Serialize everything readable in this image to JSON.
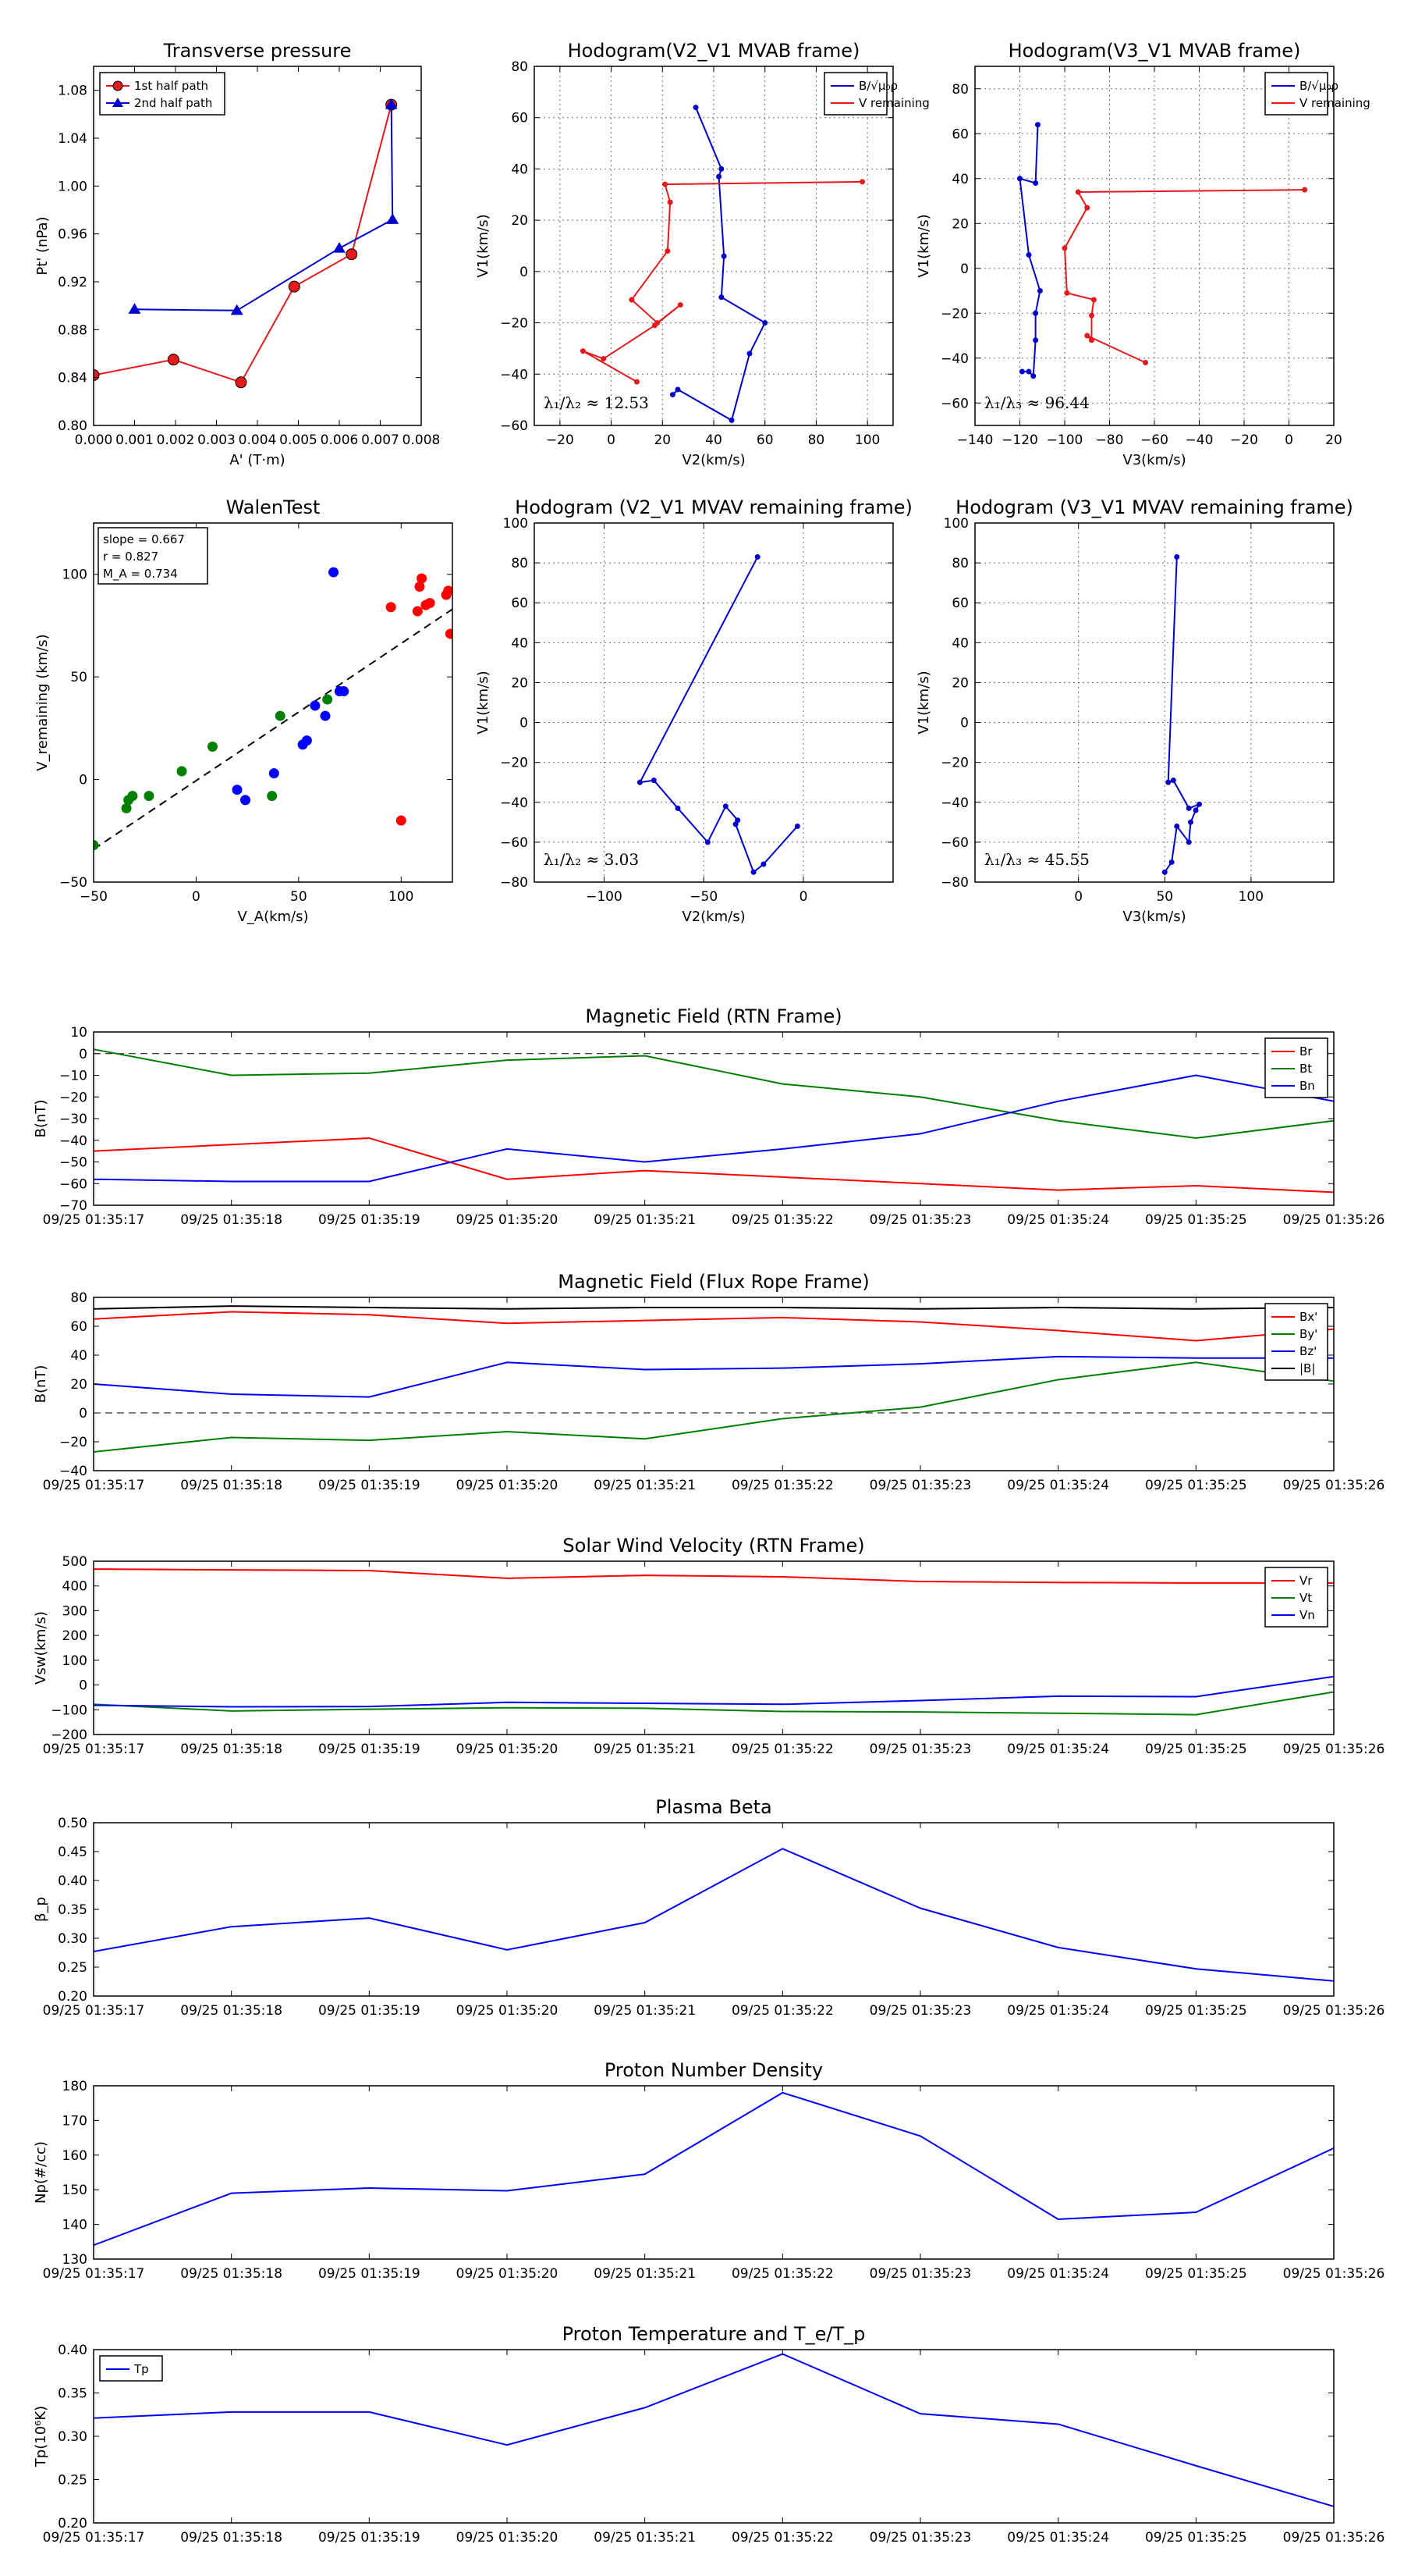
{
  "chart_data": [
    {
      "id": "p1",
      "type": "scatter",
      "title": "Transverse pressure",
      "xlabel": "A' (T·m)",
      "ylabel": "Pt' (nPa)",
      "xlim": [
        0.0,
        0.008
      ],
      "ylim": [
        0.8,
        1.1
      ],
      "xticks": [
        0.0,
        0.001,
        0.002,
        0.003,
        0.004,
        0.005,
        0.006,
        0.007,
        0.008
      ],
      "xtick_labels": [
        "0.000",
        "0.001",
        "0.002",
        "0.003",
        "0.004",
        "0.005",
        "0.006",
        "0.007",
        "0.008"
      ],
      "yticks": [
        0.8,
        0.84,
        0.88,
        0.92,
        0.96,
        1.0,
        1.04,
        1.08
      ],
      "ytick_labels": [
        "0.80",
        "0.84",
        "0.88",
        "0.92",
        "0.96",
        "1.00",
        "1.04",
        "1.08"
      ],
      "grid": false,
      "legend": "top-left",
      "series": [
        {
          "name": "1st half path",
          "color": "#e41a1c",
          "marker": "circle",
          "x": [
            0.0,
            0.00195,
            0.0036,
            0.0049,
            0.0063,
            0.00727
          ],
          "y": [
            0.842,
            0.855,
            0.836,
            0.916,
            0.943,
            1.068
          ]
        },
        {
          "name": "2nd half path",
          "color": "#0000cc",
          "marker": "triangle",
          "x": [
            0.00727,
            0.0073,
            0.006,
            0.0035,
            0.001
          ],
          "y": [
            1.068,
            0.972,
            0.948,
            0.896,
            0.897
          ]
        }
      ]
    },
    {
      "id": "p2",
      "type": "line",
      "title": "Hodogram(V2_V1 MVAB frame)",
      "xlabel": "V2(km/s)",
      "ylabel": "V1(km/s)",
      "xlim": [
        -30,
        110
      ],
      "ylim": [
        -60,
        80
      ],
      "xticks": [
        -20,
        0,
        20,
        40,
        60,
        80,
        100
      ],
      "xtick_labels": [
        "−20",
        "0",
        "20",
        "40",
        "60",
        "80",
        "100"
      ],
      "yticks": [
        -60,
        -40,
        -20,
        0,
        20,
        40,
        60,
        80
      ],
      "ytick_labels": [
        "−60",
        "−40",
        "−20",
        "0",
        "20",
        "40",
        "60",
        "80"
      ],
      "grid": true,
      "legend": "top-right",
      "annotation": "λ₁/λ₂ ≈ 12.53",
      "series": [
        {
          "name": "B/√μ₀ρ",
          "color": "#0000cc",
          "x": [
            33,
            43,
            42,
            44,
            43,
            60,
            54,
            47,
            26,
            24
          ],
          "y": [
            64,
            40,
            37,
            6,
            -10,
            -20,
            -32,
            -58,
            -46,
            -48
          ]
        },
        {
          "name": "V remaining",
          "color": "#e41a1c",
          "x": [
            98,
            21,
            23,
            22,
            8,
            18,
            27,
            17,
            -3,
            -11,
            10
          ],
          "y": [
            35,
            34,
            27,
            8,
            -11,
            -20,
            -13,
            -21,
            -34,
            -31,
            -43
          ]
        }
      ]
    },
    {
      "id": "p3",
      "type": "line",
      "title": "Hodogram(V3_V1 MVAB frame)",
      "xlabel": "V3(km/s)",
      "ylabel": "V1(km/s)",
      "xlim": [
        -140,
        20
      ],
      "ylim": [
        -70,
        90
      ],
      "xticks": [
        -140,
        -120,
        -100,
        -80,
        -60,
        -40,
        -20,
        0,
        20
      ],
      "xtick_labels": [
        "−140",
        "−120",
        "−100",
        "−80",
        "−60",
        "−40",
        "−20",
        "0",
        "20"
      ],
      "yticks": [
        -60,
        -40,
        -20,
        0,
        20,
        40,
        60,
        80
      ],
      "ytick_labels": [
        "−60",
        "−40",
        "−20",
        "0",
        "20",
        "40",
        "60",
        "80"
      ],
      "grid": true,
      "legend": "top-right",
      "annotation": "λ₁/λ₃ ≈ 96.44",
      "series": [
        {
          "name": "B/√μ₀ρ",
          "color": "#0000cc",
          "x": [
            -112,
            -113,
            -120,
            -116,
            -111,
            -113,
            -113,
            -114,
            -116,
            -119
          ],
          "y": [
            64,
            38,
            40,
            6,
            -10,
            -20,
            -32,
            -48,
            -46,
            -46
          ]
        },
        {
          "name": "V remaining",
          "color": "#e41a1c",
          "x": [
            7,
            -94,
            -90,
            -100,
            -99,
            -87,
            -88,
            -88,
            -90,
            -64
          ],
          "y": [
            35,
            34,
            27,
            9,
            -11,
            -14,
            -21,
            -32,
            -30,
            -42
          ]
        }
      ]
    },
    {
      "id": "p4",
      "type": "scatter",
      "title": "WalenTest",
      "xlabel": "V_A(km/s)",
      "ylabel": "V_remaining (km/s)",
      "xlim": [
        -50,
        125
      ],
      "ylim": [
        -50,
        125
      ],
      "xticks": [
        -50,
        0,
        50,
        100
      ],
      "xtick_labels": [
        "−50",
        "0",
        "50",
        "100"
      ],
      "yticks": [
        -50,
        0,
        50,
        100
      ],
      "ytick_labels": [
        "−50",
        "0",
        "50",
        "100"
      ],
      "grid": false,
      "annotation_lines": [
        "slope = 0.667",
        "r = 0.827",
        "M_A = 0.734"
      ],
      "fit_line": {
        "x": [
          -50,
          125
        ],
        "y": [
          -34,
          83
        ]
      },
      "series": [
        {
          "name": "blue",
          "color": "#0000ff",
          "x": [
            67,
            20,
            24,
            38,
            52,
            54,
            63,
            58,
            70,
            72
          ],
          "y": [
            101,
            -5,
            -10,
            3,
            17,
            19,
            31,
            36,
            43,
            43
          ]
        },
        {
          "name": "red",
          "color": "#ff0000",
          "x": [
            95,
            108,
            109,
            110,
            112,
            114,
            122,
            123,
            124,
            100
          ],
          "y": [
            84,
            82,
            94,
            98,
            85,
            86,
            90,
            92,
            71,
            -20
          ]
        },
        {
          "name": "green",
          "color": "#008000",
          "x": [
            -50,
            -34,
            -33,
            -31,
            -23,
            -7,
            8,
            37,
            41,
            64
          ],
          "y": [
            -32,
            -14,
            -10,
            -8,
            -8,
            4,
            16,
            -8,
            31,
            39
          ]
        }
      ]
    },
    {
      "id": "p5",
      "type": "line",
      "title": "Hodogram (V2_V1 MVAV remaining frame)",
      "xlabel": "V2(km/s)",
      "ylabel": "V1(km/s)",
      "xlim": [
        -135,
        45
      ],
      "ylim": [
        -80,
        100
      ],
      "xticks": [
        -100,
        -50,
        0
      ],
      "xtick_labels": [
        "−100",
        "−50",
        "0"
      ],
      "yticks": [
        -80,
        -60,
        -40,
        -20,
        0,
        20,
        40,
        60,
        80,
        100
      ],
      "ytick_labels": [
        "−80",
        "−60",
        "−40",
        "−20",
        "0",
        "20",
        "40",
        "60",
        "80",
        "100"
      ],
      "grid": true,
      "annotation": "λ₁/λ₂ ≈ 3.03",
      "series": [
        {
          "name": "V remaining",
          "color": "#0000cc",
          "x": [
            -23,
            -82,
            -75,
            -63,
            -48,
            -39,
            -33,
            -34,
            -25,
            -20,
            -3
          ],
          "y": [
            83,
            -30,
            -29,
            -43,
            -60,
            -42,
            -49,
            -51,
            -75,
            -71,
            -52
          ]
        }
      ]
    },
    {
      "id": "p6",
      "type": "line",
      "title": "Hodogram (V3_V1 MVAV remaining frame)",
      "xlabel": "V3(km/s)",
      "ylabel": "V1(km/s)",
      "xlim": [
        -60,
        148
      ],
      "ylim": [
        -80,
        100
      ],
      "xticks": [
        0,
        50,
        100
      ],
      "xtick_labels": [
        "0",
        "50",
        "100"
      ],
      "yticks": [
        -80,
        -60,
        -40,
        -20,
        0,
        20,
        40,
        60,
        80,
        100
      ],
      "ytick_labels": [
        "−80",
        "−60",
        "−40",
        "−20",
        "0",
        "20",
        "40",
        "60",
        "80",
        "100"
      ],
      "grid": true,
      "annotation": "λ₁/λ₃ ≈ 45.55",
      "series": [
        {
          "name": "V remaining",
          "color": "#0000cc",
          "x": [
            57,
            52,
            55,
            64,
            70,
            68,
            65,
            64,
            57,
            54,
            50
          ],
          "y": [
            83,
            -30,
            -29,
            -43,
            -41,
            -44,
            -50,
            -60,
            -52,
            -70,
            -75
          ]
        }
      ]
    },
    {
      "id": "p7",
      "type": "line",
      "title": "Magnetic Field (RTN Frame)",
      "ylabel": "B(nT)",
      "ylim": [
        -70,
        10
      ],
      "yticks": [
        -70,
        -60,
        -50,
        -40,
        -30,
        -20,
        -10,
        0,
        10
      ],
      "ytick_labels": [
        "−70",
        "−60",
        "−50",
        "−40",
        "−30",
        "−20",
        "−10",
        "0",
        "10"
      ],
      "categories": [
        "09/25 01:35:17",
        "09/25 01:35:18",
        "09/25 01:35:19",
        "09/25 01:35:20",
        "09/25 01:35:21",
        "09/25 01:35:22",
        "09/25 01:35:23",
        "09/25 01:35:24",
        "09/25 01:35:25",
        "09/25 01:35:26"
      ],
      "zero_line": true,
      "legend": "top-right",
      "series": [
        {
          "name": "Br",
          "color": "#ff0000",
          "values": [
            -45,
            -42,
            -39,
            -58,
            -54,
            -57,
            -60,
            -63,
            -61,
            -64
          ]
        },
        {
          "name": "Bt",
          "color": "#008000",
          "values": [
            2,
            -10,
            -9,
            -3,
            -1,
            -14,
            -20,
            -31,
            -39,
            -31
          ]
        },
        {
          "name": "Bn",
          "color": "#0000ff",
          "values": [
            -58,
            -59,
            -59,
            -44,
            -50,
            -44,
            -37,
            -22,
            -10,
            -22
          ]
        }
      ]
    },
    {
      "id": "p8",
      "type": "line",
      "title": "Magnetic Field (Flux Rope Frame)",
      "ylabel": "B(nT)",
      "ylim": [
        -40,
        80
      ],
      "yticks": [
        -40,
        -20,
        0,
        20,
        40,
        60,
        80
      ],
      "ytick_labels": [
        "−40",
        "−20",
        "0",
        "20",
        "40",
        "60",
        "80"
      ],
      "categories": [
        "09/25 01:35:17",
        "09/25 01:35:18",
        "09/25 01:35:19",
        "09/25 01:35:20",
        "09/25 01:35:21",
        "09/25 01:35:22",
        "09/25 01:35:23",
        "09/25 01:35:24",
        "09/25 01:35:25",
        "09/25 01:35:26"
      ],
      "zero_line": true,
      "legend": "top-right",
      "series": [
        {
          "name": "Bx'",
          "color": "#ff0000",
          "values": [
            65,
            70,
            68,
            62,
            64,
            66,
            63,
            57,
            50,
            58
          ]
        },
        {
          "name": "By'",
          "color": "#008000",
          "values": [
            -27,
            -17,
            -19,
            -13,
            -18,
            -4,
            4,
            23,
            35,
            22
          ]
        },
        {
          "name": "Bz'",
          "color": "#0000ff",
          "values": [
            20,
            13,
            11,
            35,
            30,
            31,
            34,
            39,
            38,
            38
          ]
        },
        {
          "name": "|B|",
          "color": "#000000",
          "values": [
            72,
            74,
            73,
            72,
            73,
            73,
            72,
            73,
            72,
            73
          ]
        }
      ]
    },
    {
      "id": "p9",
      "type": "line",
      "title": "Solar Wind Velocity (RTN Frame)",
      "ylabel": "Vsw(km/s)",
      "ylim": [
        -200,
        500
      ],
      "yticks": [
        -200,
        -100,
        0,
        100,
        200,
        300,
        400,
        500
      ],
      "ytick_labels": [
        "−200",
        "−100",
        "0",
        "100",
        "200",
        "300",
        "400",
        "500"
      ],
      "categories": [
        "09/25 01:35:17",
        "09/25 01:35:18",
        "09/25 01:35:19",
        "09/25 01:35:20",
        "09/25 01:35:21",
        "09/25 01:35:22",
        "09/25 01:35:23",
        "09/25 01:35:24",
        "09/25 01:35:25",
        "09/25 01:35:26"
      ],
      "legend": "top-right",
      "series": [
        {
          "name": "Vr",
          "color": "#ff0000",
          "values": [
            468,
            465,
            462,
            431,
            443,
            437,
            418,
            414,
            412,
            412
          ]
        },
        {
          "name": "Vt",
          "color": "#008000",
          "values": [
            -78,
            -105,
            -98,
            -92,
            -94,
            -107,
            -109,
            -114,
            -120,
            -28
          ]
        },
        {
          "name": "Vn",
          "color": "#0000ff",
          "values": [
            -82,
            -88,
            -87,
            -70,
            -74,
            -78,
            -63,
            -45,
            -47,
            34
          ]
        }
      ]
    },
    {
      "id": "p10",
      "type": "line",
      "title": "Plasma Beta",
      "ylabel": "β_p",
      "ylim": [
        0.2,
        0.5
      ],
      "yticks": [
        0.2,
        0.25,
        0.3,
        0.35,
        0.4,
        0.45,
        0.5
      ],
      "ytick_labels": [
        "0.20",
        "0.25",
        "0.30",
        "0.35",
        "0.40",
        "0.45",
        "0.50"
      ],
      "categories": [
        "09/25 01:35:17",
        "09/25 01:35:18",
        "09/25 01:35:19",
        "09/25 01:35:20",
        "09/25 01:35:21",
        "09/25 01:35:22",
        "09/25 01:35:23",
        "09/25 01:35:24",
        "09/25 01:35:25",
        "09/25 01:35:26"
      ],
      "series": [
        {
          "name": "beta",
          "color": "#0000ff",
          "values": [
            0.277,
            0.32,
            0.335,
            0.28,
            0.327,
            0.455,
            0.352,
            0.284,
            0.247,
            0.226
          ]
        }
      ]
    },
    {
      "id": "p11",
      "type": "line",
      "title": "Proton Number Density",
      "ylabel": "Np(#/cc)",
      "ylim": [
        130,
        180
      ],
      "yticks": [
        130,
        140,
        150,
        160,
        170,
        180
      ],
      "ytick_labels": [
        "130",
        "140",
        "150",
        "160",
        "170",
        "180"
      ],
      "categories": [
        "09/25 01:35:17",
        "09/25 01:35:18",
        "09/25 01:35:19",
        "09/25 01:35:20",
        "09/25 01:35:21",
        "09/25 01:35:22",
        "09/25 01:35:23",
        "09/25 01:35:24",
        "09/25 01:35:25",
        "09/25 01:35:26"
      ],
      "series": [
        {
          "name": "Np",
          "color": "#0000ff",
          "values": [
            134,
            149,
            150.5,
            149.7,
            154.5,
            178,
            165.5,
            141.5,
            143.5,
            162
          ]
        }
      ]
    },
    {
      "id": "p12",
      "type": "line",
      "title": "Proton Temperature and T_e/T_p",
      "ylabel": "Tp(10⁶K)",
      "ylim": [
        0.2,
        0.4
      ],
      "yticks": [
        0.2,
        0.25,
        0.3,
        0.35,
        0.4
      ],
      "ytick_labels": [
        "0.20",
        "0.25",
        "0.30",
        "0.35",
        "0.40"
      ],
      "categories": [
        "09/25 01:35:17",
        "09/25 01:35:18",
        "09/25 01:35:19",
        "09/25 01:35:20",
        "09/25 01:35:21",
        "09/25 01:35:22",
        "09/25 01:35:23",
        "09/25 01:35:24",
        "09/25 01:35:25",
        "09/25 01:35:26"
      ],
      "legend": "top-left",
      "series": [
        {
          "name": "Tp",
          "color": "#0000ff",
          "values": [
            0.321,
            0.328,
            0.328,
            0.29,
            0.333,
            0.395,
            0.326,
            0.314,
            0.266,
            0.219
          ]
        }
      ]
    }
  ]
}
